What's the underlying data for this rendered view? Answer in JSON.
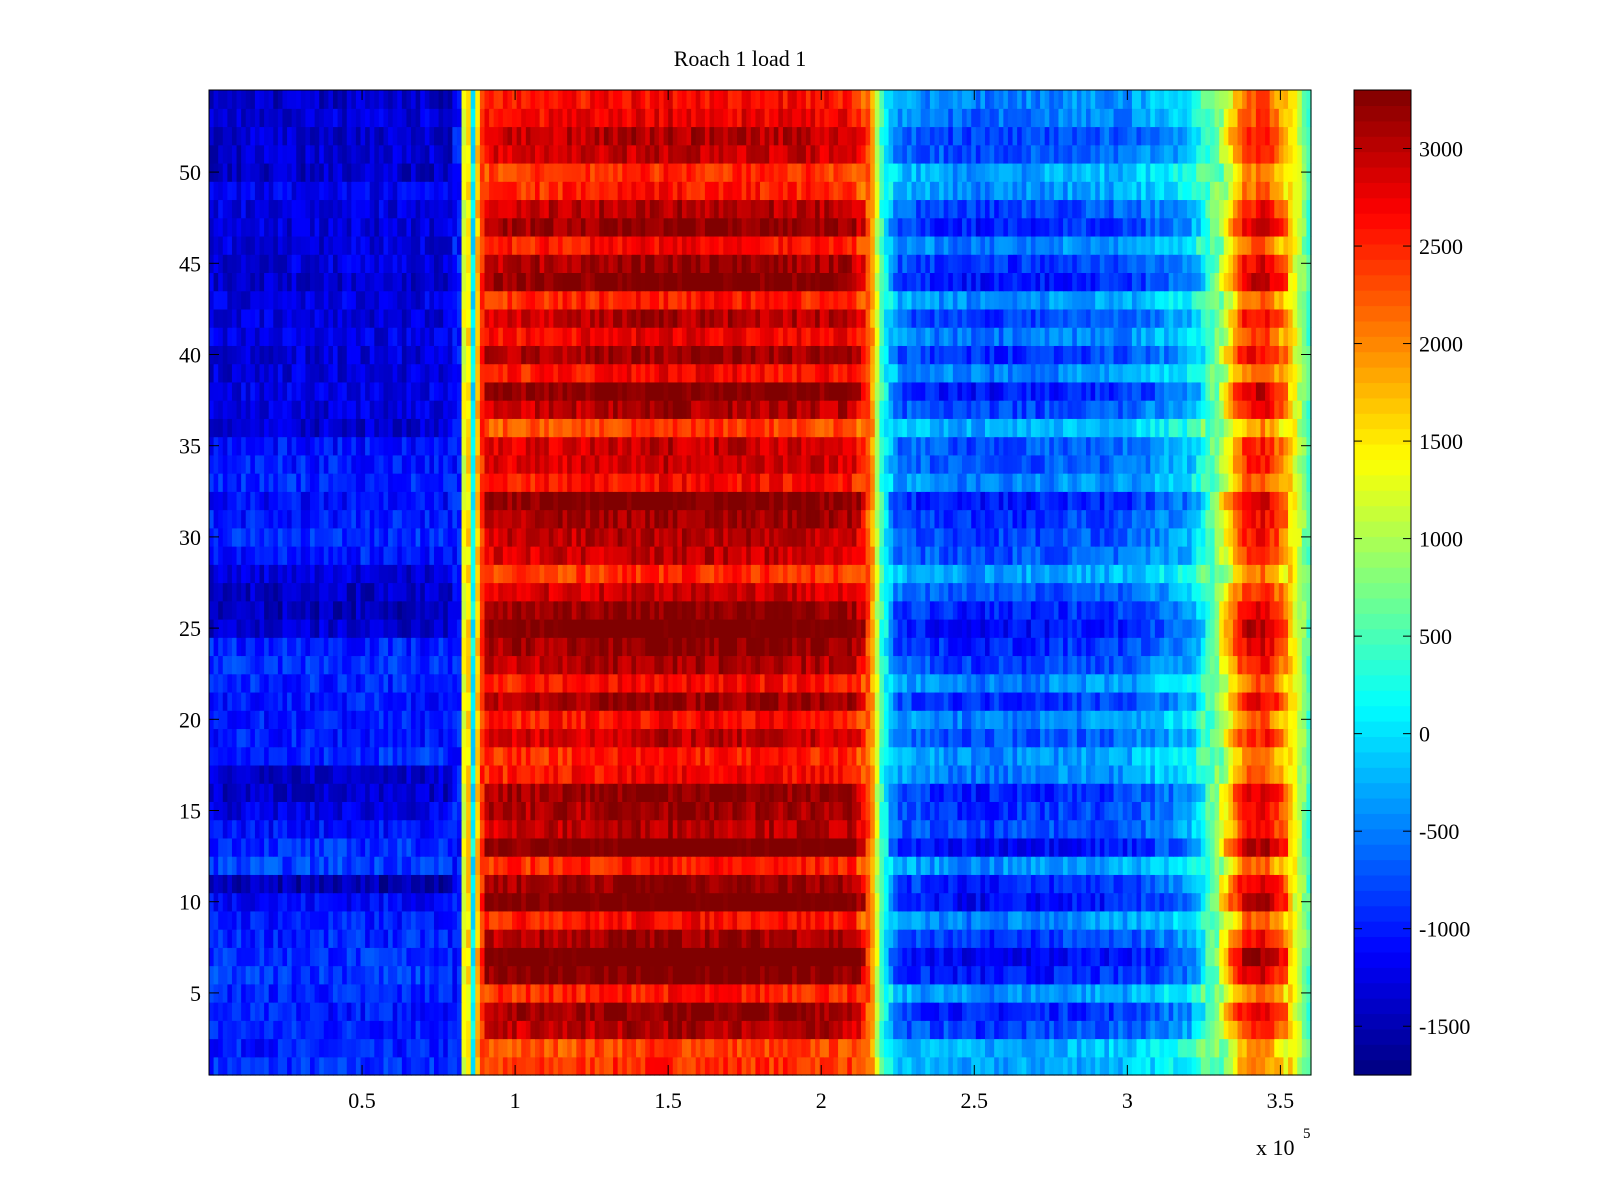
{
  "chart_data": {
    "type": "heatmap",
    "title": "Roach 1 load 1",
    "xlabel": "",
    "ylabel": "",
    "x_multiplier_label": "x 10",
    "x_multiplier_exponent": "5",
    "xlim": [
      0,
      3.6
    ],
    "ylim": [
      0.5,
      54.5
    ],
    "xticks": [
      0.5,
      1,
      1.5,
      2,
      2.5,
      3,
      3.5
    ],
    "xtick_labels": [
      "0.5",
      "1",
      "1.5",
      "2",
      "2.5",
      "3",
      "3.5"
    ],
    "yticks": [
      5,
      10,
      15,
      20,
      25,
      30,
      35,
      40,
      45,
      50
    ],
    "ytick_labels": [
      "5",
      "10",
      "15",
      "20",
      "25",
      "30",
      "35",
      "40",
      "45",
      "50"
    ],
    "rows": 54,
    "colormap": "jet",
    "clim": [
      -1750,
      3300
    ],
    "colorbar_ticks": [
      -1500,
      -1000,
      -500,
      0,
      500,
      1000,
      1500,
      2000,
      2500,
      3000
    ],
    "colorbar_tick_labels": [
      "-1500",
      "-1000",
      "-500",
      "0",
      "500",
      "1000",
      "1500",
      "2000",
      "2500",
      "3000"
    ],
    "value_profile": {
      "x": [
        0.0,
        0.82,
        0.84,
        0.86,
        0.88,
        0.9,
        1.5,
        2.1,
        2.16,
        2.2,
        2.25,
        2.5,
        3.0,
        3.2,
        3.3,
        3.38,
        3.45,
        3.52,
        3.6
      ],
      "value": [
        -1000,
        -1000,
        2600,
        -200,
        2000,
        2700,
        2900,
        2800,
        2200,
        300,
        -500,
        -700,
        -500,
        -100,
        800,
        2300,
        2500,
        1800,
        400
      ]
    },
    "row_offsets": [
      -400,
      -500,
      200,
      400,
      -300,
      500,
      700,
      300,
      -200,
      600,
      400,
      -300,
      600,
      200,
      300,
      400,
      -200,
      -300,
      100,
      -200,
      300,
      -200,
      200,
      400,
      600,
      400,
      100,
      -400,
      100,
      200,
      300,
      500,
      -200,
      100,
      100,
      -500,
      200,
      500,
      -200,
      300,
      -100,
      200,
      -300,
      500,
      300,
      -200,
      400,
      200,
      -300,
      -400,
      100,
      200,
      -100,
      -200
    ],
    "row_left_offsets": [
      -400,
      -500,
      -450,
      -500,
      -450,
      -350,
      -400,
      -450,
      -500,
      -600,
      -1000,
      -300,
      -400,
      -550,
      -750,
      -900,
      -850,
      -400,
      -500,
      -500,
      -500,
      -450,
      -400,
      -450,
      -850,
      -950,
      -900,
      -800,
      -500,
      -400,
      -500,
      -600,
      -450,
      -500,
      -550,
      -850,
      -800,
      -750,
      -800,
      -800,
      -750,
      -800,
      -750,
      -850,
      -800,
      -800,
      -800,
      -750,
      -700,
      -900,
      -850,
      -850,
      -800,
      -900
    ]
  }
}
